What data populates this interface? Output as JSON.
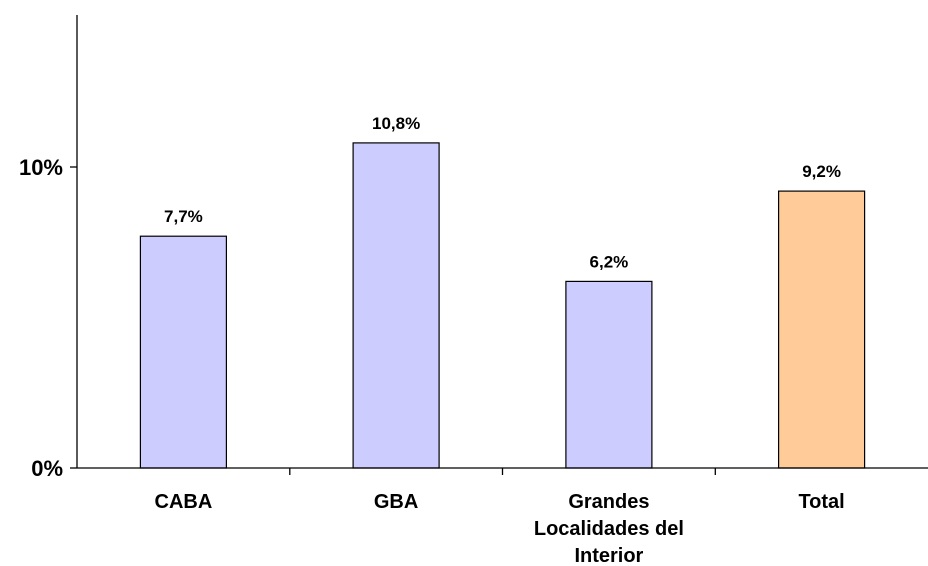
{
  "chart_data": {
    "type": "bar",
    "categories": [
      "CABA",
      "GBA",
      "Grandes Localidades del Interior",
      "Total"
    ],
    "category_label_lines": [
      [
        "CABA"
      ],
      [
        "GBA"
      ],
      [
        "Grandes",
        "Localidades del",
        "Interior"
      ],
      [
        "Total"
      ]
    ],
    "values": [
      7.7,
      10.8,
      6.2,
      9.2
    ],
    "data_labels": [
      "7,7%",
      "10,8%",
      "6,2%",
      "9,2%"
    ],
    "bar_colors": [
      "#ccccff",
      "#ccccff",
      "#ccccff",
      "#ffcc99"
    ],
    "ylim": [
      0,
      15
    ],
    "yticks": [
      {
        "value": 0,
        "label": "0%"
      },
      {
        "value": 10,
        "label": "10%"
      }
    ],
    "title": "",
    "xlabel": "",
    "ylabel": "",
    "grid": false,
    "legend": "none"
  }
}
